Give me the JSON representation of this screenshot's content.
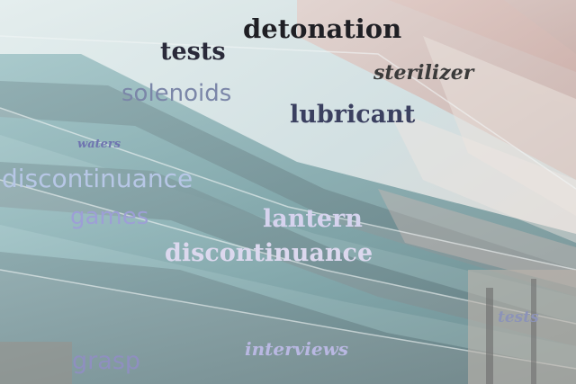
{
  "words": [
    {
      "key": "detonation",
      "text": "detonation",
      "color": "#1f1f24"
    },
    {
      "key": "tests_big",
      "text": "tests",
      "color": "#2a2a3a"
    },
    {
      "key": "sterilizer",
      "text": "sterilizer",
      "color": "#3a3a3a"
    },
    {
      "key": "solenoids",
      "text": "solenoids",
      "color": "#7b86a8"
    },
    {
      "key": "lubricant",
      "text": "lubricant",
      "color": "#3b4060"
    },
    {
      "key": "waters",
      "text": "waters",
      "color": "#6f74b0"
    },
    {
      "key": "discontinuance_top",
      "text": "discontinuance",
      "color": "#b7c7e6"
    },
    {
      "key": "games",
      "text": "games",
      "color": "#9d9fd6"
    },
    {
      "key": "lantern",
      "text": "lantern",
      "color": "#d6d3ee"
    },
    {
      "key": "discontinuance_mid",
      "text": "discontinuance",
      "color": "#dcd8ee"
    },
    {
      "key": "tests_small",
      "text": "tests",
      "color": "#8c93b8"
    },
    {
      "key": "interviews",
      "text": "interviews",
      "color": "#b9b8e2"
    },
    {
      "key": "grasp",
      "text": "grasp",
      "color": "#8f8fc0"
    }
  ]
}
